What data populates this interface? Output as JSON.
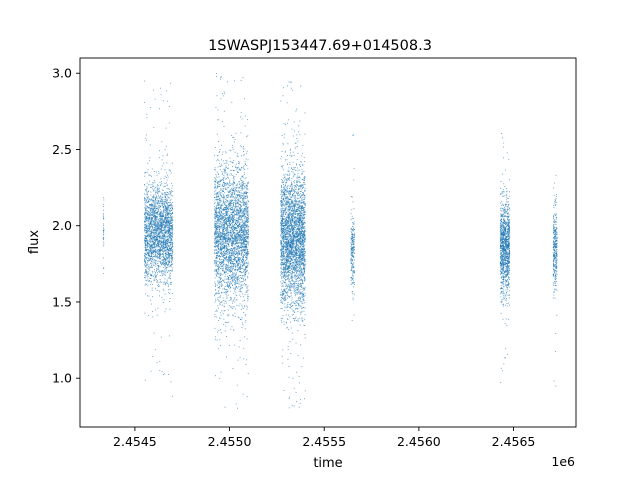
{
  "chart_data": {
    "type": "scatter",
    "title": "1SWASPJ153447.69+014508.3",
    "xlabel": "time",
    "ylabel": "flux",
    "x_offset_label": "1e6",
    "xlim": [
      2.45421,
      2.45683
    ],
    "ylim": [
      0.68,
      3.1
    ],
    "x_ticks": [
      2.4545,
      2.455,
      2.4555,
      2.456,
      2.4565
    ],
    "x_tick_labels": [
      "2.4545",
      "2.4550",
      "2.4555",
      "2.4560",
      "2.4565"
    ],
    "y_ticks": [
      1.0,
      1.5,
      2.0,
      2.5,
      3.0
    ],
    "y_tick_labels": [
      "1.0",
      "1.5",
      "2.0",
      "2.5",
      "3.0"
    ],
    "grid": false,
    "legend": "none",
    "marker_color": "#1f77b4",
    "series": [
      {
        "clusters": [
          {
            "x_start": 2.454333,
            "x_end": 2.454336,
            "y_center": 2.0,
            "y_spread": 0.15,
            "y_min": 1.35,
            "y_max": 2.4,
            "points": 35
          },
          {
            "x_start": 2.45455,
            "x_end": 2.4547,
            "y_center": 1.95,
            "y_spread": 0.16,
            "y_min": 0.85,
            "y_max": 3.02,
            "points": 2400
          },
          {
            "x_start": 2.45492,
            "x_end": 2.4551,
            "y_center": 1.95,
            "y_spread": 0.22,
            "y_min": 0.8,
            "y_max": 3.02,
            "points": 3200
          },
          {
            "x_start": 2.45527,
            "x_end": 2.4554,
            "y_center": 1.92,
            "y_spread": 0.22,
            "y_min": 0.8,
            "y_max": 3.02,
            "points": 3000
          },
          {
            "x_start": 2.45564,
            "x_end": 2.45566,
            "y_center": 1.85,
            "y_spread": 0.12,
            "y_min": 1.2,
            "y_max": 2.68,
            "points": 220
          },
          {
            "x_start": 2.45643,
            "x_end": 2.45648,
            "y_center": 1.85,
            "y_spread": 0.15,
            "y_min": 0.85,
            "y_max": 2.62,
            "points": 1100
          },
          {
            "x_start": 2.45671,
            "x_end": 2.45673,
            "y_center": 1.85,
            "y_spread": 0.14,
            "y_min": 0.92,
            "y_max": 2.58,
            "points": 320
          }
        ]
      }
    ]
  }
}
